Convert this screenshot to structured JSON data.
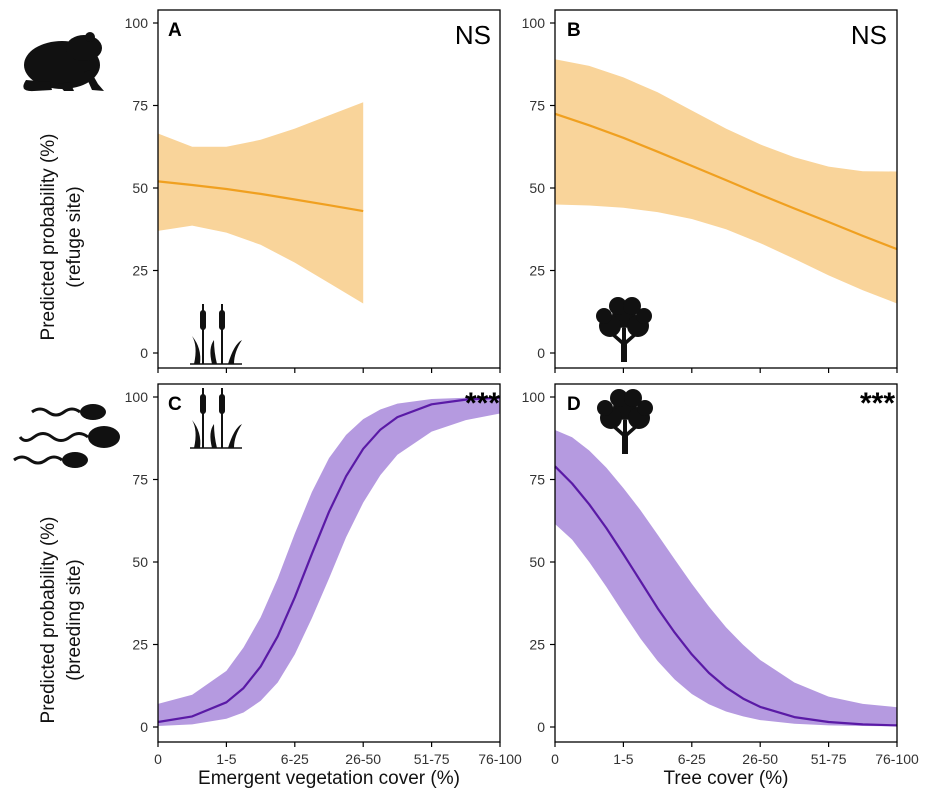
{
  "chart_data": [
    {
      "type": "line",
      "panel": "A",
      "significance": "NS",
      "icon": "cattail-icon",
      "x_ticks": [
        "0",
        "1-5",
        "6-25",
        "26-50",
        "51-75",
        "76-100"
      ],
      "xlim": [
        0,
        5
      ],
      "ylim": [
        0,
        100
      ],
      "y_ticks": [
        0,
        25,
        50,
        75,
        100
      ],
      "color": "#f0a020",
      "band_color": "#f9d49a",
      "series": [
        {
          "x": [
            0,
            0.5,
            1,
            1.5,
            2,
            2.5,
            3
          ],
          "y": [
            52,
            50.9,
            49.7,
            48.2,
            46.5,
            44.8,
            43
          ],
          "lower": [
            37,
            38.6,
            36.5,
            32.8,
            27.4,
            21.2,
            15
          ],
          "upper": [
            66.5,
            62.5,
            62.5,
            64.6,
            68.0,
            72.0,
            76
          ]
        }
      ]
    },
    {
      "type": "line",
      "panel": "B",
      "significance": "NS",
      "icon": "tree-icon",
      "x_ticks": [
        "0",
        "1-5",
        "6-25",
        "26-50",
        "51-75",
        "76-100"
      ],
      "xlim": [
        0,
        5
      ],
      "ylim": [
        0,
        100
      ],
      "y_ticks": [
        0,
        25,
        50,
        75,
        100
      ],
      "color": "#f0a020",
      "band_color": "#f9d49a",
      "series": [
        {
          "x": [
            0,
            0.5,
            1,
            1.5,
            2,
            2.5,
            3,
            3.5,
            4,
            4.5,
            5
          ],
          "y": [
            72.5,
            69.0,
            65.2,
            61.0,
            56.7,
            52.4,
            48.0,
            43.8,
            39.7,
            35.5,
            31.5
          ],
          "lower": [
            45,
            44.7,
            44.0,
            42.7,
            40.6,
            37.5,
            33.3,
            28.5,
            23.5,
            19.0,
            15
          ],
          "upper": [
            89,
            87.0,
            83.5,
            79.0,
            73.5,
            68.0,
            63.2,
            59.3,
            56.5,
            55.1,
            55
          ]
        }
      ]
    },
    {
      "type": "line",
      "panel": "C",
      "significance": "***",
      "icon": "cattail-icon",
      "x_ticks": [
        "0",
        "1-5",
        "6-25",
        "26-50",
        "51-75",
        "76-100"
      ],
      "xlim": [
        0,
        5
      ],
      "ylim": [
        0,
        100
      ],
      "y_ticks": [
        0,
        25,
        50,
        75,
        100
      ],
      "color": "#5a1aa6",
      "band_color": "#b59ae0",
      "series": [
        {
          "x": [
            0,
            0.5,
            1,
            1.25,
            1.5,
            1.75,
            2,
            2.25,
            2.5,
            2.75,
            3,
            3.25,
            3.5,
            4,
            4.5,
            5
          ],
          "y": [
            1.5,
            3.2,
            7.5,
            11.8,
            18.3,
            27.5,
            39.3,
            52.5,
            65.2,
            76.0,
            84.3,
            90.1,
            93.9,
            97.8,
            99.2,
            99.8
          ],
          "lower": [
            0.3,
            0.8,
            2.5,
            4.4,
            7.9,
            13.5,
            22.0,
            33.0,
            45.0,
            57.5,
            68.0,
            76.3,
            82.5,
            89.5,
            93.0,
            95
          ],
          "upper": [
            7,
            9.8,
            17.0,
            24.1,
            33.2,
            45.0,
            58.6,
            71.2,
            81.5,
            88.5,
            93.3,
            96.2,
            98.0,
            99.4,
            99.8,
            100
          ]
        }
      ]
    },
    {
      "type": "line",
      "panel": "D",
      "significance": "***",
      "icon": "tree-icon",
      "x_ticks": [
        "0",
        "1-5",
        "6-25",
        "26-50",
        "51-75",
        "76-100"
      ],
      "xlim": [
        0,
        5
      ],
      "ylim": [
        0,
        100
      ],
      "y_ticks": [
        0,
        25,
        50,
        75,
        100
      ],
      "color": "#5a1aa6",
      "band_color": "#b59ae0",
      "series": [
        {
          "x": [
            0,
            0.25,
            0.5,
            0.75,
            1,
            1.25,
            1.5,
            1.75,
            2,
            2.25,
            2.5,
            2.75,
            3,
            3.5,
            4,
            4.5,
            5
          ],
          "y": [
            79,
            73.8,
            67.5,
            60.3,
            52.4,
            44.2,
            36.0,
            28.6,
            22.0,
            16.4,
            12.0,
            8.6,
            6.1,
            3.0,
            1.5,
            0.8,
            0.5
          ],
          "lower": [
            61.5,
            56.8,
            50.0,
            42.5,
            34.5,
            26.8,
            20.0,
            14.4,
            10.0,
            6.9,
            4.7,
            3.2,
            2.1,
            1.0,
            0.5,
            0.3,
            0.2
          ],
          "upper": [
            90,
            87.8,
            83.8,
            78.6,
            72.4,
            65.7,
            58.3,
            50.8,
            43.4,
            36.5,
            30.2,
            24.9,
            20.3,
            13.5,
            9.2,
            7.0,
            6
          ]
        }
      ]
    }
  ],
  "labels": {
    "ylabel_top": [
      "Predicted probability (%)",
      "(refuge site)"
    ],
    "ylabel_bottom": [
      "Predicted probability (%)",
      "(breeding site)"
    ],
    "xlabel_left": "Emergent vegetation cover (%)",
    "xlabel_right": "Tree cover (%)"
  },
  "icons": {
    "adult": "frog-icon",
    "larvae": "tadpoles-icon"
  }
}
